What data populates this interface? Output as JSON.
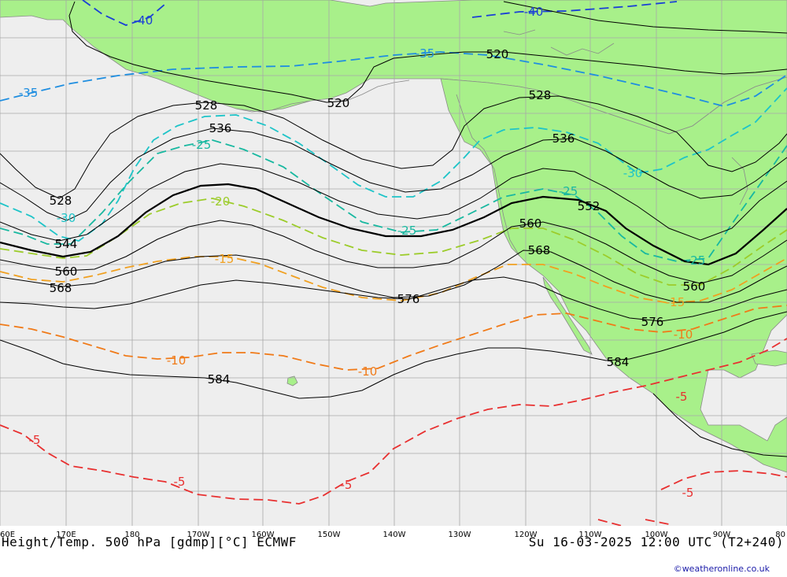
{
  "map": {
    "colors": {
      "ocean": "#eeeeee",
      "land": "#a8f08a",
      "coast": "#8a8a8a",
      "grid": "#a8a8a8",
      "height": "#000000",
      "temp_minus40": "#1a3fd6",
      "temp_minus35": "#1f8ee0",
      "temp_minus30": "#1ec4c8",
      "temp_minus25": "#18b8a0",
      "temp_minus20": "#9ccc2a",
      "temp_minus15": "#f0a020",
      "temp_minus10": "#f07a18",
      "temp_minus5": "#e83030"
    },
    "height_labels": [
      "520",
      "520",
      "528",
      "528",
      "528",
      "536",
      "536",
      "544",
      "552",
      "560",
      "560",
      "560",
      "568",
      "568",
      "576",
      "576",
      "584",
      "584"
    ],
    "temp_labels": [
      "-40",
      "-40",
      "-35",
      "-35",
      "-30",
      "-30",
      "-25",
      "-25",
      "-25",
      "-25",
      "-20",
      "-15",
      "-15",
      "-10",
      "-10",
      "-10",
      "-5",
      "-5",
      "-5",
      "-5",
      "-5"
    ]
  },
  "axis": {
    "lon_ticks": [
      "60E",
      "170E",
      "180",
      "170W",
      "160W",
      "150W",
      "140W",
      "130W",
      "120W",
      "110W",
      "100W",
      "90W",
      "80"
    ]
  },
  "footer": {
    "title_left": "Height/Temp. 500 hPa [gdmp][°C] ECMWF",
    "title_right": "Su 16-03-2025 12:00 UTC (T2+240)",
    "credit": "©weatheronline.co.uk"
  }
}
